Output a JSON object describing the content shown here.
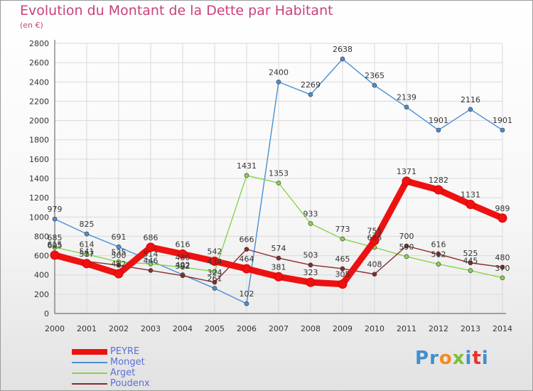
{
  "title": "Evolution du Montant de la Dette par Habitant",
  "unit": "(en €)",
  "logo": {
    "text": "Proxiti",
    "letters": [
      {
        "ch": "P",
        "color": "#3f8fd2"
      },
      {
        "ch": "r",
        "color": "#3f8fd2"
      },
      {
        "ch": "o",
        "color": "#f28c1e"
      },
      {
        "ch": "x",
        "color": "#7cbf32"
      },
      {
        "ch": "i",
        "color": "#3f8fd2"
      },
      {
        "ch": "t",
        "color": "#e3342f"
      },
      {
        "ch": "i",
        "color": "#3f8fd2"
      }
    ]
  },
  "chart_data": {
    "type": "line",
    "title": "Evolution du Montant de la Dette par Habitant",
    "ylabel": "(en €)",
    "ylim": [
      0,
      2800
    ],
    "yticks": [
      0,
      200,
      400,
      600,
      800,
      1000,
      1200,
      1400,
      1600,
      1800,
      2000,
      2200,
      2400,
      2600,
      2800
    ],
    "x": [
      2000,
      2001,
      2002,
      2003,
      2004,
      2005,
      2006,
      2007,
      2008,
      2009,
      2010,
      2011,
      2012,
      2013,
      2014
    ],
    "grid": true,
    "legend_position": "bottom-left",
    "series": [
      {
        "name": "PEYRE",
        "color": "#ee1111",
        "values": [
          605,
          517,
          412,
          686,
          616,
          542,
          464,
          381,
          323,
          305,
          755,
          1371,
          1282,
          1131,
          989
        ]
      },
      {
        "name": "Monget",
        "color": "#4a8ed4",
        "values": [
          979,
          825,
          691,
          null,
          402,
          261,
          102,
          2400,
          2269,
          2638,
          2365,
          2139,
          1901,
          2116,
          1901
        ]
      },
      {
        "name": "Arget",
        "color": "#88d44a",
        "values": [
          685,
          614,
          535,
          514,
          480,
          434,
          1431,
          1353,
          933,
          773,
          685,
          590,
          512,
          445,
          370
        ]
      },
      {
        "name": "Poudenx",
        "color": "#8b2a2a",
        "values": [
          615,
          541,
          500,
          446,
          392,
          324,
          666,
          574,
          503,
          465,
          408,
          700,
          616,
          525,
          480
        ]
      }
    ]
  }
}
